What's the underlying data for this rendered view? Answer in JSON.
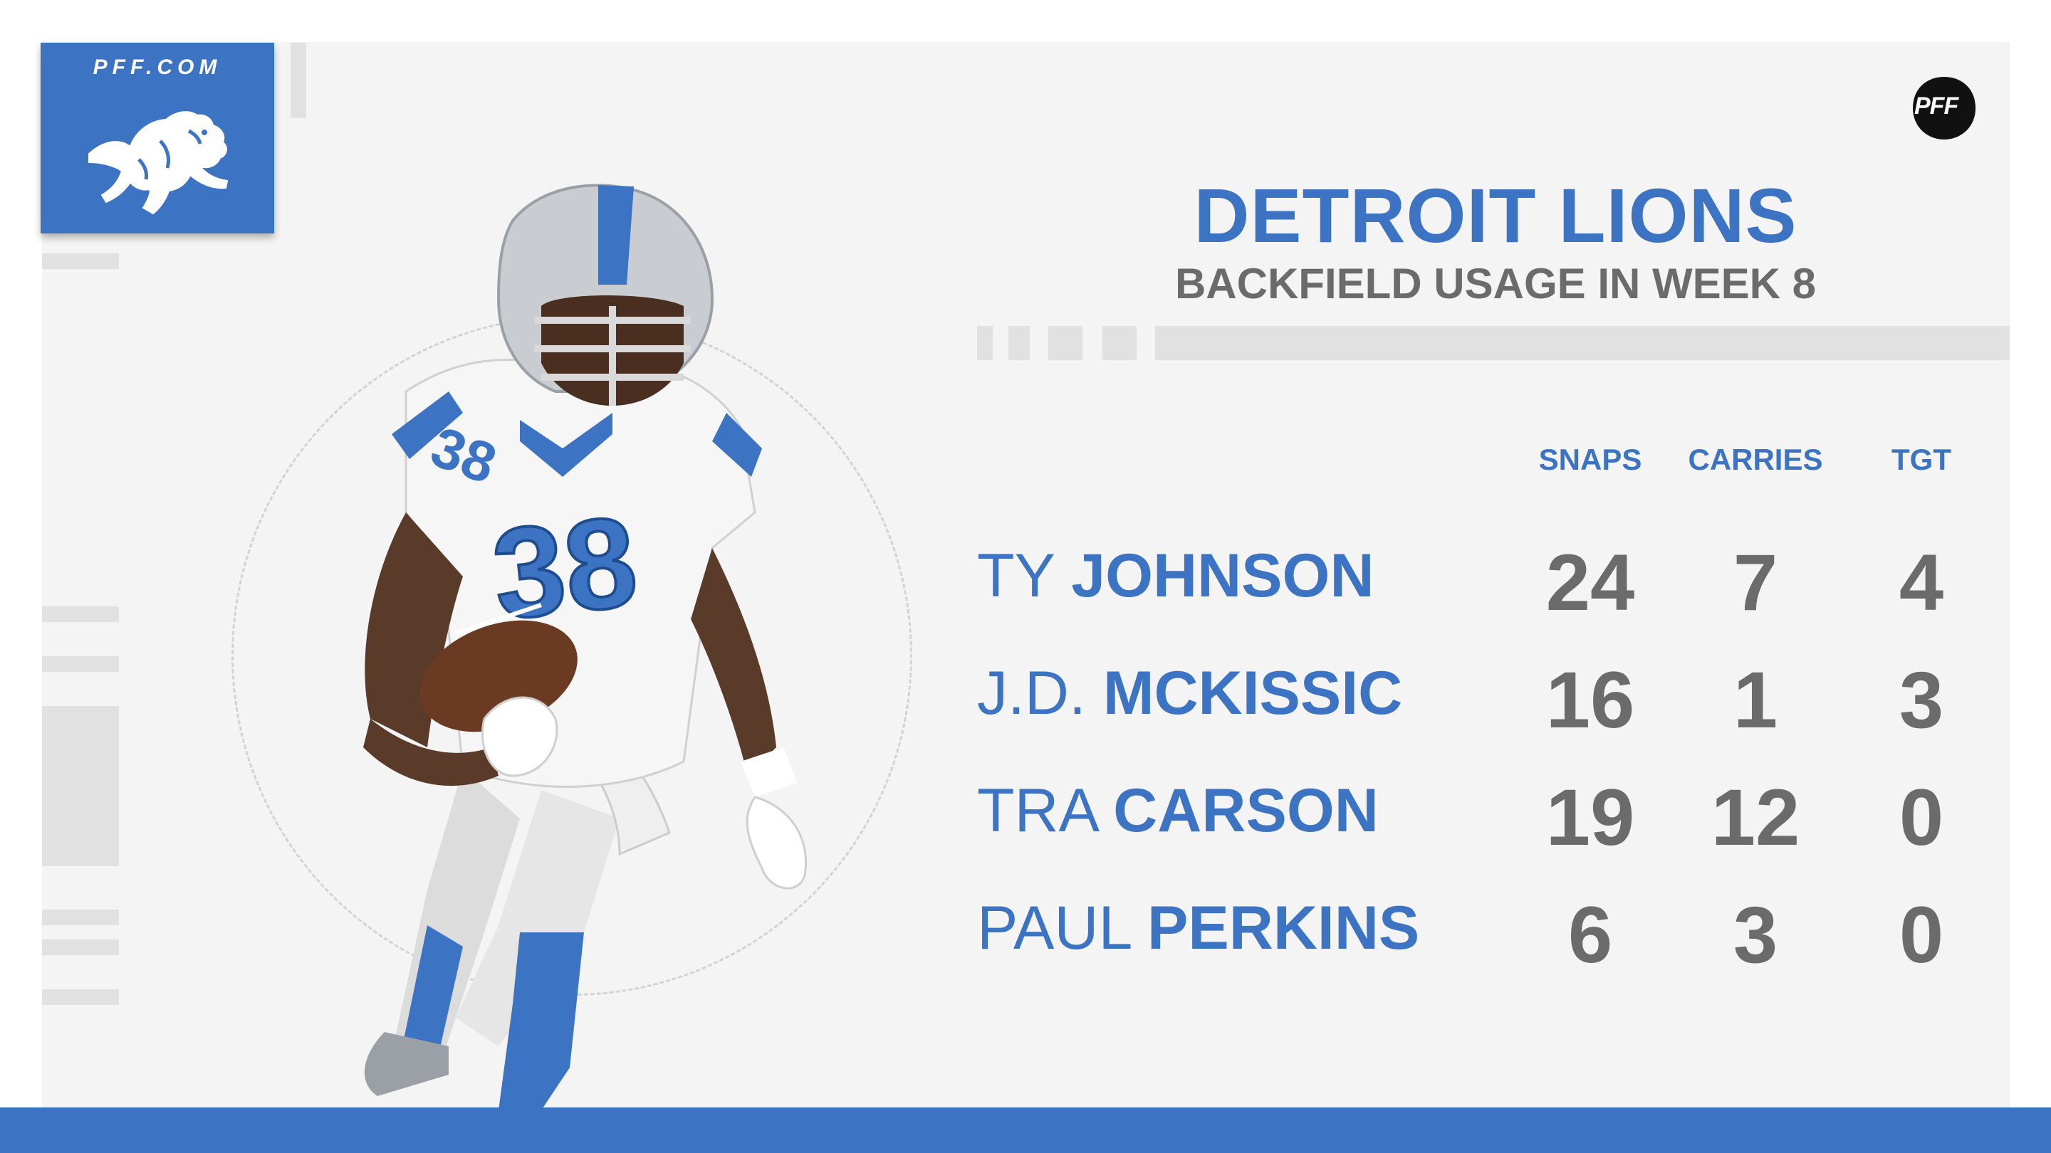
{
  "brand": {
    "site": "PFF.COM",
    "badge": "PFF",
    "team_logo_icon": "lion-icon",
    "accent_color": "#3c73c2",
    "stat_color": "#6b6b6b"
  },
  "header": {
    "title": "DETROIT LIONS",
    "subtitle": "BACKFIELD USAGE IN WEEK 8"
  },
  "table": {
    "columns": [
      "SNAPS",
      "CARRIES",
      "TGT"
    ],
    "rows": [
      {
        "first": "TY",
        "last": "JOHNSON",
        "stats": [
          "24",
          "7",
          "4"
        ]
      },
      {
        "first": "J.D.",
        "last": "MCKISSIC",
        "stats": [
          "16",
          "1",
          "3"
        ]
      },
      {
        "first": "TRA",
        "last": "CARSON",
        "stats": [
          "19",
          "12",
          "0"
        ]
      },
      {
        "first": "PAUL",
        "last": "PERKINS",
        "stats": [
          "6",
          "3",
          "0"
        ]
      }
    ]
  },
  "photo": {
    "description_icon": "running-back-player-icon"
  }
}
